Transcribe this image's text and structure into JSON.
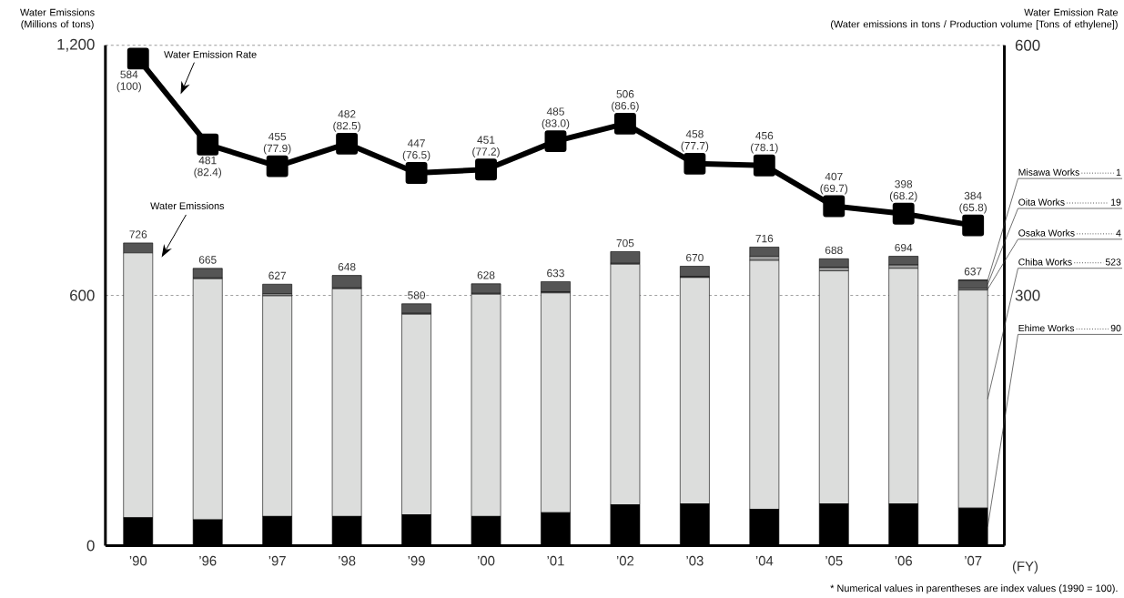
{
  "chart_data": {
    "type": "bar",
    "stacked": true,
    "xlabel": "(FY)",
    "ylabel": "Water Emissions (Millions of tons)",
    "y2label": "Water Emission Rate (Water emissions in tons / Production volume [Tons of ethylene])",
    "categories": [
      "’90",
      "’96",
      "’97",
      "’98",
      "’99",
      "’00",
      "’01",
      "’02",
      "’03",
      "’04",
      "’05",
      "’06",
      "’07"
    ],
    "ylim": [
      0,
      1200
    ],
    "yticks": [
      0,
      600,
      {
        "value": 1200,
        "label": "1,200"
      }
    ],
    "y2lim": [
      0,
      600
    ],
    "y2ticks": [
      300,
      600
    ],
    "grid": "y",
    "legend": "right",
    "series": [
      {
        "name": "Ehime Works",
        "color": "#000000",
        "values": [
          67,
          62,
          70,
          70,
          74,
          70,
          79,
          98,
          100,
          87,
          100,
          100,
          90
        ],
        "value_labels": [
          null,
          null,
          null,
          null,
          null,
          null,
          null,
          null,
          null,
          null,
          null,
          null,
          "90"
        ]
      },
      {
        "name": "Chiba Works",
        "color": "#dcdddc",
        "values": [
          635,
          578,
          529,
          546,
          481,
          533,
          527,
          577,
          543,
          597,
          559,
          565,
          523
        ],
        "value_labels": [
          null,
          null,
          null,
          null,
          null,
          null,
          null,
          null,
          null,
          null,
          null,
          null,
          "523"
        ]
      },
      {
        "name": "Osaka Works",
        "color": "#9a9a9a",
        "values": [
          null,
          2,
          5,
          2,
          2,
          2,
          2,
          2,
          2,
          10,
          8,
          8,
          4
        ],
        "value_labels": [
          null,
          null,
          null,
          null,
          null,
          null,
          null,
          null,
          null,
          null,
          null,
          null,
          "4"
        ]
      },
      {
        "name": "Oita Works",
        "color": "#555555",
        "values": [
          24,
          23,
          23,
          30,
          23,
          23,
          25,
          28,
          25,
          22,
          21,
          21,
          19
        ],
        "value_labels": [
          null,
          null,
          null,
          null,
          null,
          null,
          null,
          null,
          null,
          null,
          null,
          null,
          "19"
        ]
      },
      {
        "name": "Misawa Works",
        "color": "#000000",
        "values": [
          null,
          null,
          null,
          null,
          null,
          null,
          null,
          null,
          null,
          null,
          null,
          null,
          1
        ],
        "value_labels": [
          null,
          null,
          null,
          null,
          null,
          null,
          null,
          null,
          null,
          null,
          null,
          null,
          "1"
        ]
      },
      {
        "type": "line",
        "axis": "y2",
        "color": "#000000",
        "marker": "square",
        "line_style": "solid",
        "values": [
          584,
          481,
          455,
          482,
          447,
          451,
          485,
          506,
          458,
          456,
          407,
          398,
          384
        ],
        "value_labels": [
          "584 (100)",
          "481 (82.4)",
          "455 (77.9)",
          "482 (82.5)",
          "447 (76.5)",
          "451 (77.2)",
          "485 (83.0)",
          "506 (86.6)",
          "458 (77.7)",
          "456 (78.1)",
          "407 (69.7)",
          "398 (68.2)",
          "384 (65.8)"
        ]
      }
    ],
    "totals": [
      "726",
      "665",
      "627",
      "648",
      "580",
      "628",
      "633",
      "705",
      "670",
      "716",
      "688",
      "694",
      "637"
    ],
    "annotations": [
      "Water Emission Rate",
      "Water Emissions",
      "* Numerical values in parentheses are index values (1990 = 100)."
    ]
  }
}
